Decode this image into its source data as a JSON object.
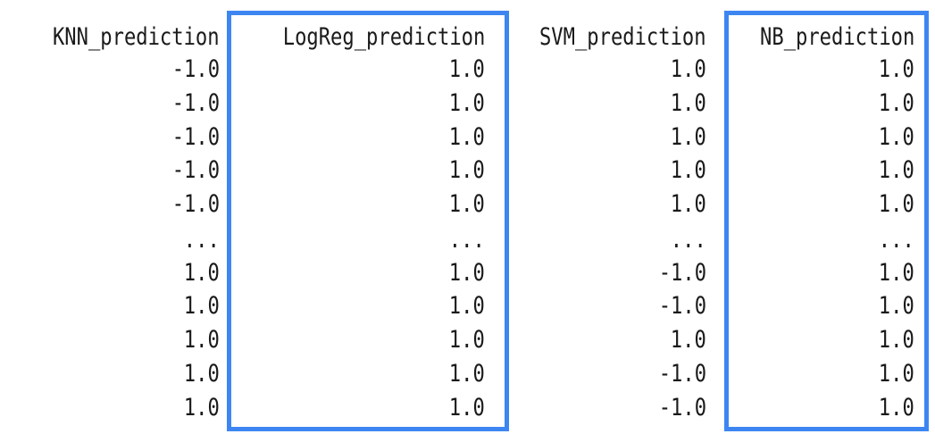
{
  "table": {
    "columns": [
      {
        "header": "KNN_prediction",
        "highlighted": false,
        "values": [
          "-1.0",
          "-1.0",
          "-1.0",
          "-1.0",
          "-1.0",
          "...",
          "1.0",
          "1.0",
          "1.0",
          "1.0",
          "1.0"
        ]
      },
      {
        "header": "LogReg_prediction",
        "highlighted": true,
        "values": [
          "1.0",
          "1.0",
          "1.0",
          "1.0",
          "1.0",
          "...",
          "1.0",
          "1.0",
          "1.0",
          "1.0",
          "1.0"
        ]
      },
      {
        "header": "SVM_prediction",
        "highlighted": false,
        "values": [
          "1.0",
          "1.0",
          "1.0",
          "1.0",
          "1.0",
          "...",
          "-1.0",
          "-1.0",
          "1.0",
          "-1.0",
          "-1.0"
        ]
      },
      {
        "header": "NB_prediction",
        "highlighted": true,
        "values": [
          "1.0",
          "1.0",
          "1.0",
          "1.0",
          "1.0",
          "...",
          "1.0",
          "1.0",
          "1.0",
          "1.0",
          "1.0"
        ]
      }
    ]
  },
  "colors": {
    "highlight_border": "#3d86f2",
    "text": "#1a1a1a",
    "background": "#ffffff"
  }
}
